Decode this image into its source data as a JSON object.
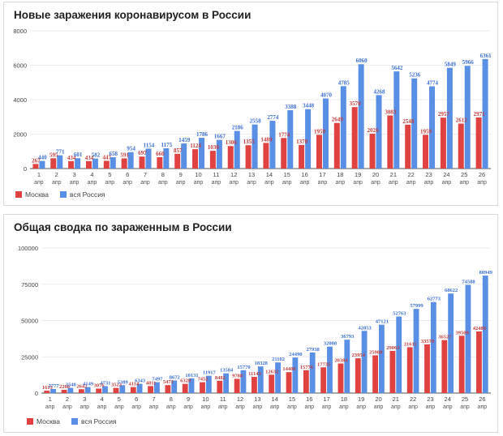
{
  "colors": {
    "moscow": "#e04141",
    "russia": "#5a8fe6",
    "moscow_label": "#c23b3b",
    "russia_label": "#3c6fd1"
  },
  "chart_data": [
    {
      "type": "bar",
      "title": "Новые заражения коронавирусом в России",
      "categories": [
        "1",
        "2",
        "3",
        "4",
        "5",
        "6",
        "7",
        "8",
        "9",
        "10",
        "11",
        "12",
        "13",
        "14",
        "15",
        "16",
        "17",
        "18",
        "19",
        "20",
        "21",
        "22",
        "23",
        "24",
        "25",
        "26"
      ],
      "category_sublabel": "апр",
      "series": [
        {
          "name": "Москва",
          "values": [
            267,
            595,
            434,
            434,
            447,
            591,
            697,
            660,
            857,
            1124,
            1030,
            1306,
            1355,
            1489,
            1774,
            1370,
            1959,
            2649,
            3570,
            2026,
            3083,
            2548,
            1959,
            2957,
            2612,
            2971
          ]
        },
        {
          "name": "вся Россия",
          "values": [
            440,
            771,
            601,
            582,
            658,
            954,
            1154,
            1175,
            1459,
            1786,
            1667,
            2186,
            2558,
            2774,
            3388,
            3448,
            4070,
            4785,
            6060,
            4268,
            5642,
            5236,
            4774,
            5849,
            5966,
            6361
          ]
        }
      ],
      "yticks": [
        "0",
        "2000",
        "4000",
        "6000",
        "8000"
      ],
      "ylim": [
        0,
        8000
      ],
      "legend": "bottom-left"
    },
    {
      "type": "bar",
      "title": "Общая сводка по зараженным в России",
      "categories": [
        "1",
        "2",
        "3",
        "4",
        "5",
        "6",
        "7",
        "8",
        "9",
        "10",
        "11",
        "12",
        "13",
        "14",
        "15",
        "16",
        "17",
        "18",
        "19",
        "20",
        "21",
        "22",
        "23",
        "24",
        "25",
        "26"
      ],
      "category_sublabel": "апр",
      "series": [
        {
          "name": "Москва",
          "values": [
            1613,
            2208,
            2642,
            3076,
            3523,
            4114,
            4811,
            5471,
            6328,
            7452,
            8482,
            9788,
            11143,
            12632,
            14406,
            15776,
            17735,
            20384,
            23954,
            25980,
            29063,
            31611,
            33570,
            36527,
            39509,
            42480
          ]
        },
        {
          "name": "вся Россия",
          "values": [
            2777,
            3548,
            4149,
            4731,
            5389,
            6343,
            7497,
            8672,
            10131,
            11917,
            13584,
            15770,
            18328,
            21102,
            24490,
            27938,
            32008,
            36793,
            42853,
            47121,
            52763,
            57999,
            62773,
            68622,
            74588,
            80949
          ]
        }
      ],
      "yticks": [
        "0",
        "25000",
        "50000",
        "75000",
        "100000"
      ],
      "ylim": [
        0,
        100000
      ],
      "legend": "bottom-left"
    }
  ]
}
